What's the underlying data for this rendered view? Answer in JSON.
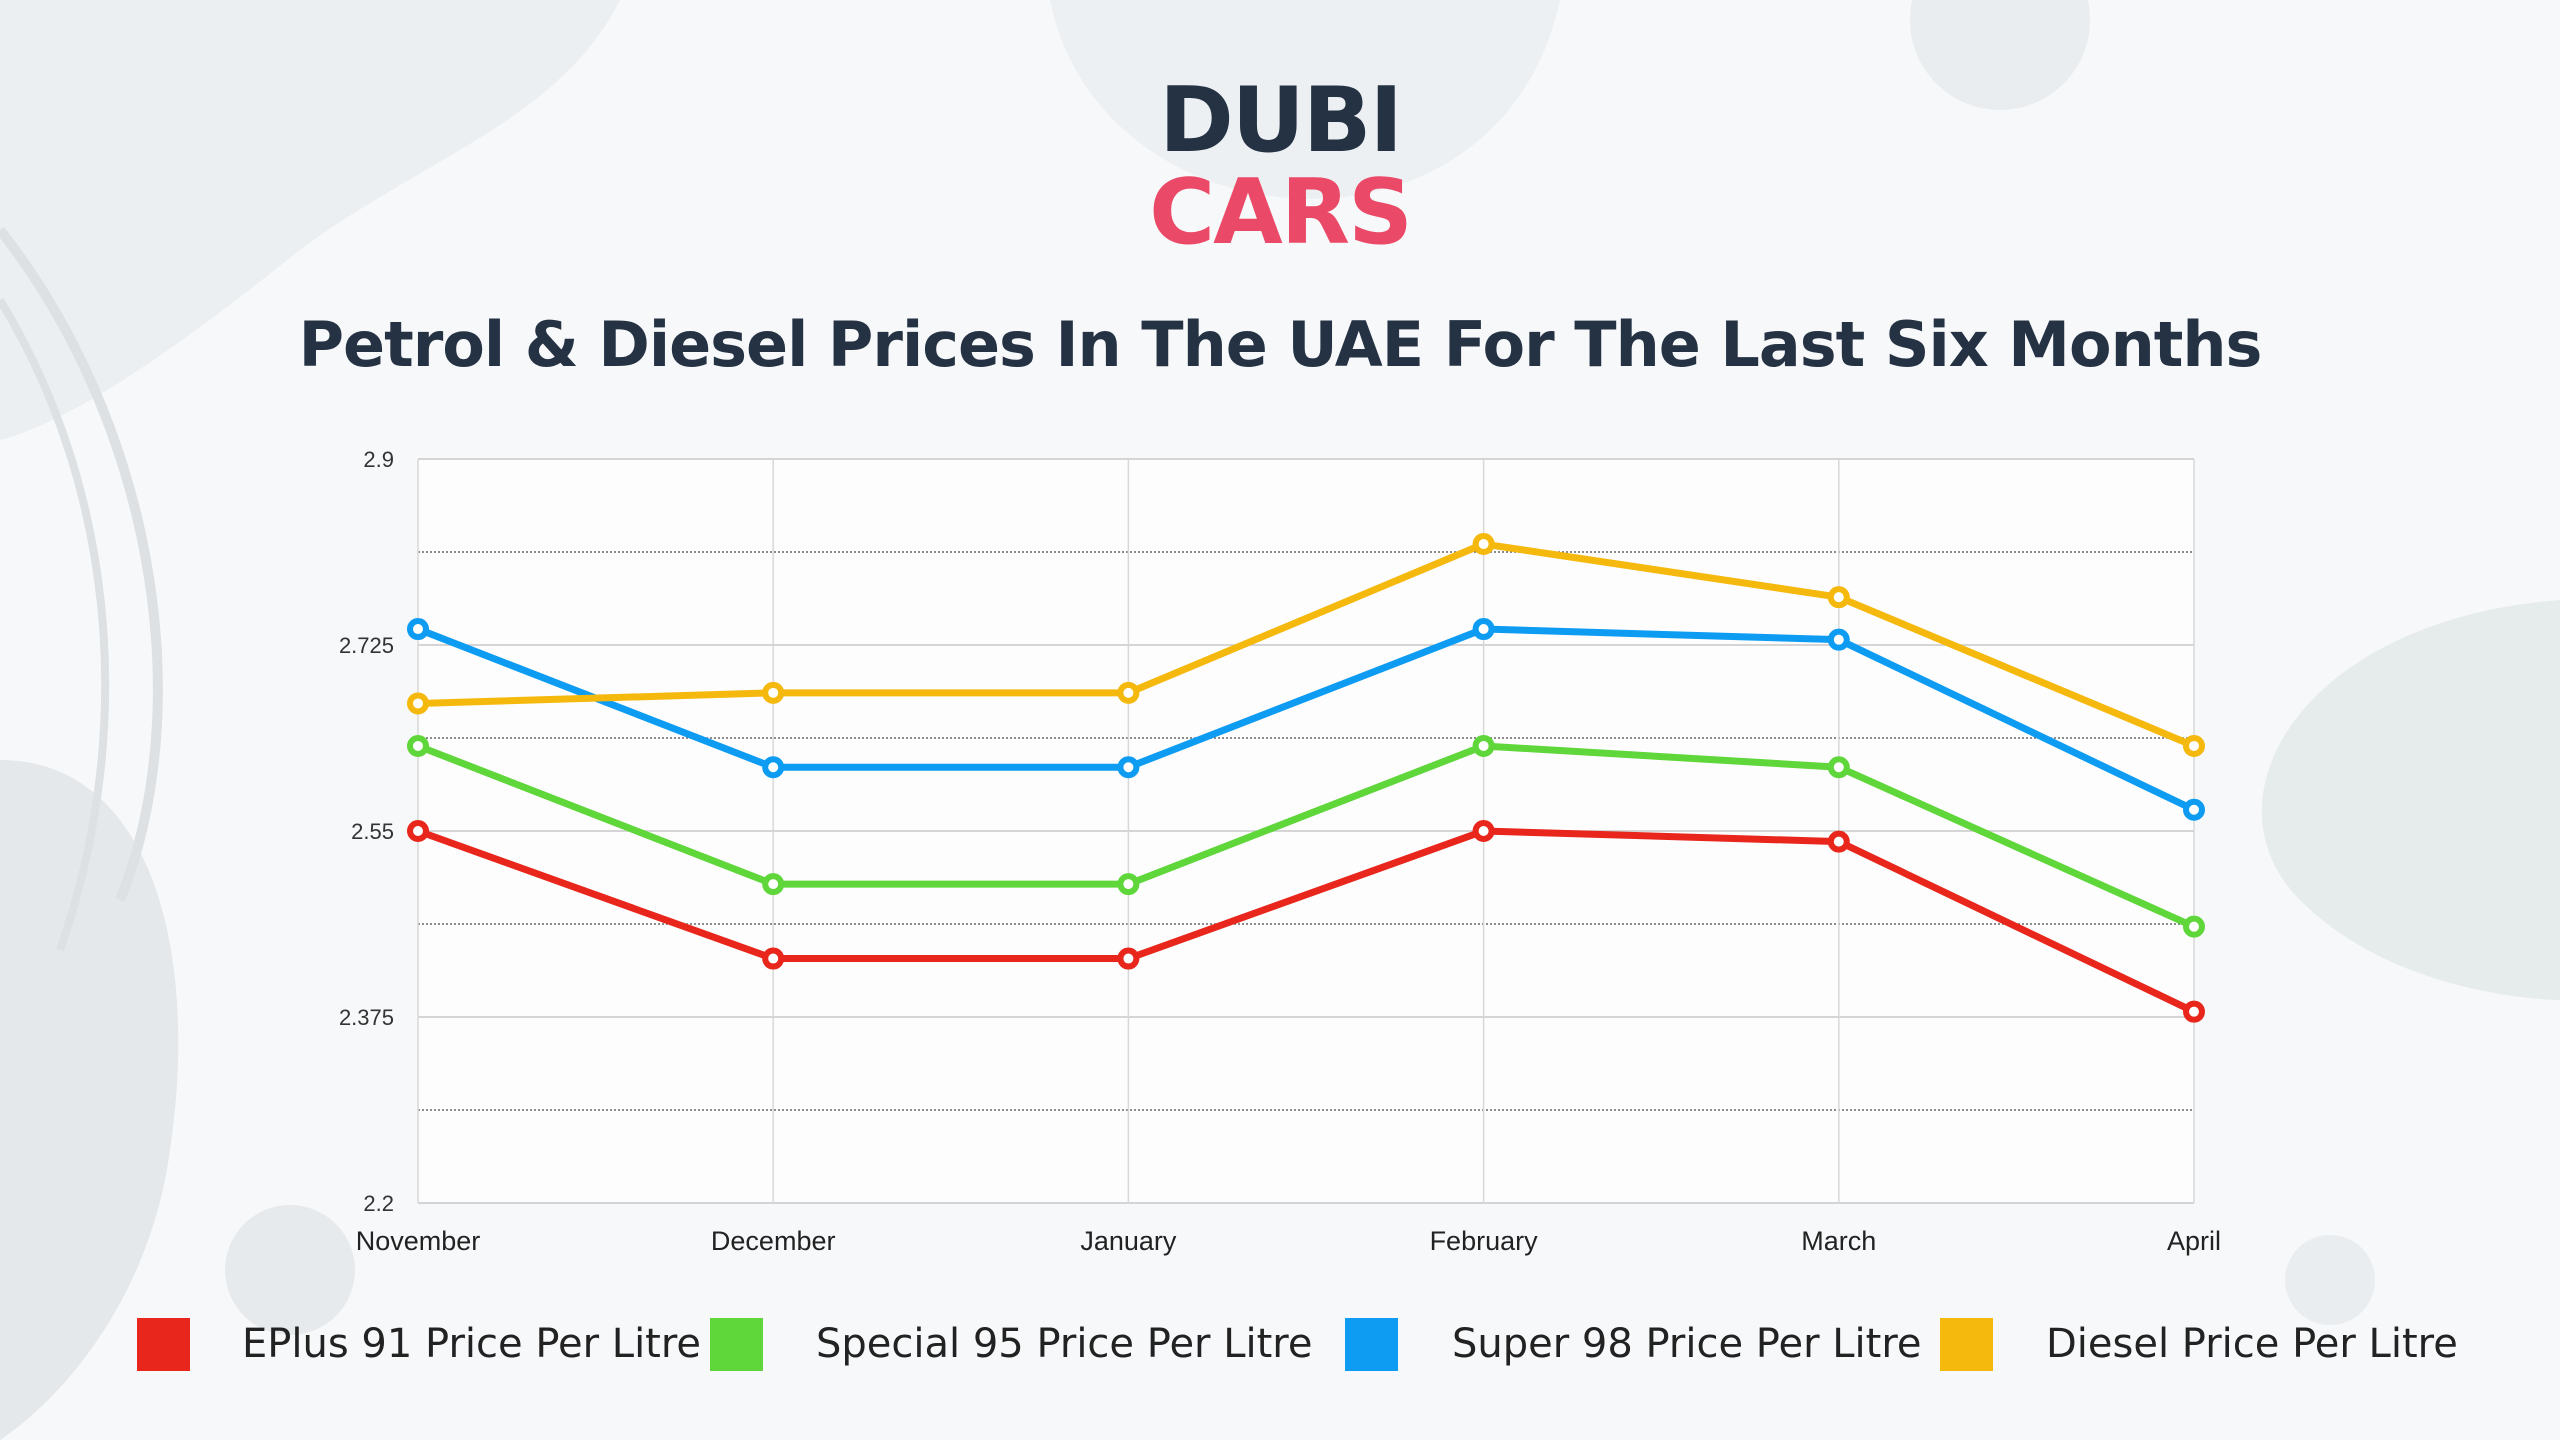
{
  "logo": {
    "line1": "DUBI",
    "line2": "CARS",
    "colors": {
      "line1": "#253244",
      "line2": "#ea4a67"
    }
  },
  "chart_data": {
    "type": "line",
    "title": "Petrol & Diesel Prices In The UAE For The Last Six Months",
    "categories": [
      "November",
      "December",
      "January",
      "February",
      "March",
      "April"
    ],
    "ylim": [
      2.2,
      2.9
    ],
    "yticks": [
      "2.2",
      "2.375",
      "2.55",
      "2.725",
      "2.9"
    ],
    "grid": true,
    "legend": "bottom",
    "series": [
      {
        "name": "EPlus 91 Price Per Litre",
        "color": "#e8261b",
        "values": [
          2.55,
          2.43,
          2.43,
          2.55,
          2.54,
          2.38
        ]
      },
      {
        "name": "Special 95 Price Per Litre",
        "color": "#5fd63a",
        "values": [
          2.63,
          2.5,
          2.5,
          2.63,
          2.61,
          2.46
        ]
      },
      {
        "name": "Super 98 Price Per Litre",
        "color": "#0d9cf2",
        "values": [
          2.74,
          2.61,
          2.61,
          2.74,
          2.73,
          2.57
        ]
      },
      {
        "name": "Diesel Price Per Litre",
        "color": "#f5b80c",
        "values": [
          2.67,
          2.68,
          2.68,
          2.82,
          2.77,
          2.63
        ]
      }
    ]
  }
}
